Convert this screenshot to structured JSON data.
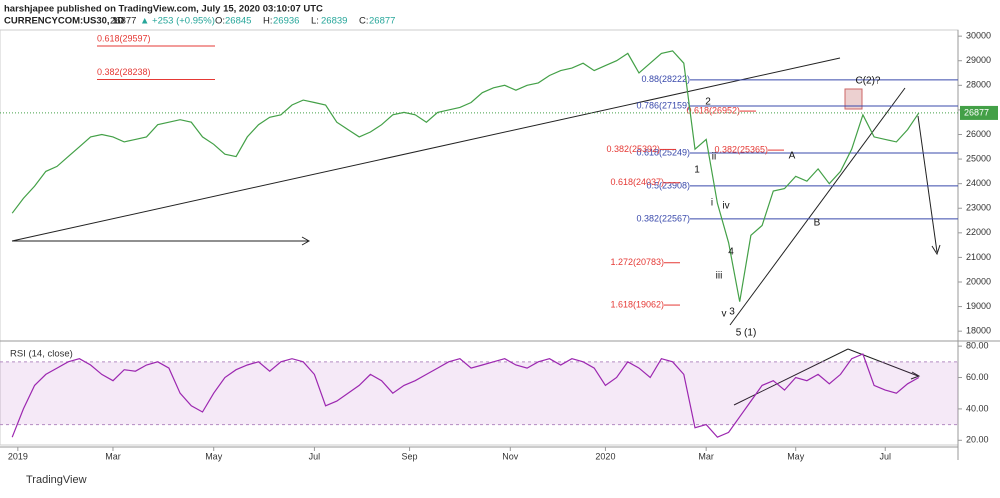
{
  "chart_data": {
    "type": "line",
    "title": "harshjapee published on TradingView.com, July 15, 2020 03:10:07 UTC",
    "symbol": "CURRENCYCOM:US30, 1D",
    "last": 26877,
    "change": "▲ +253 (+0.95%)",
    "ohlc": [
      {
        "label": "O:",
        "value": 26845
      },
      {
        "label": "H:",
        "value": 26936
      },
      {
        "label": "L:",
        "value": 26839
      },
      {
        "label": "C:",
        "value": 26877
      }
    ],
    "series": [
      {
        "name": "CURRENCYCOM:US30",
        "color": "#43a047",
        "values": [
          22800,
          23400,
          23900,
          24500,
          24700,
          25100,
          25500,
          25900,
          26000,
          25900,
          25700,
          25800,
          25900,
          26400,
          26500,
          26600,
          26500,
          25900,
          25600,
          25200,
          25100,
          25900,
          26400,
          26700,
          26800,
          27200,
          27400,
          27300,
          27200,
          26500,
          26200,
          25900,
          26100,
          26400,
          26800,
          26900,
          26800,
          26500,
          26900,
          27000,
          27100,
          27300,
          27700,
          27900,
          28000,
          27800,
          28000,
          28100,
          28400,
          28600,
          28700,
          28900,
          28600,
          28800,
          29000,
          29300,
          28500,
          28900,
          29300,
          29400,
          28900,
          25400,
          25800,
          23200,
          21600,
          19200,
          21900,
          22300,
          23700,
          23800,
          24300,
          24100,
          24600,
          24000,
          24500,
          25400,
          26800,
          25900,
          25800,
          25700,
          26200,
          26877
        ]
      },
      {
        "name": "RSI (14, close)",
        "color": "#9c27b0",
        "axis": "y2",
        "values": [
          22,
          40,
          55,
          62,
          66,
          70,
          72,
          68,
          62,
          58,
          65,
          64,
          68,
          70,
          66,
          50,
          42,
          38,
          50,
          60,
          65,
          68,
          70,
          64,
          70,
          72,
          70,
          62,
          42,
          45,
          50,
          55,
          62,
          58,
          50,
          55,
          58,
          62,
          66,
          70,
          72,
          66,
          68,
          70,
          72,
          68,
          66,
          70,
          72,
          68,
          72,
          70,
          66,
          55,
          60,
          70,
          66,
          60,
          72,
          70,
          62,
          28,
          30,
          22,
          25,
          35,
          45,
          55,
          58,
          52,
          60,
          58,
          62,
          56,
          62,
          72,
          75,
          55,
          52,
          50,
          56,
          60
        ]
      }
    ],
    "xlim": [
      -0.2,
      84.5
    ],
    "xticks": [
      {
        "value": 0.5,
        "label": "2019"
      },
      {
        "value": 9,
        "label": "Mar"
      },
      {
        "value": 18,
        "label": "May"
      },
      {
        "value": 27,
        "label": "Jul"
      },
      {
        "value": 35.5,
        "label": "Sep"
      },
      {
        "value": 44.5,
        "label": "Nov"
      },
      {
        "value": 53,
        "label": "2020"
      },
      {
        "value": 62,
        "label": "Mar"
      },
      {
        "value": 70,
        "label": "May"
      },
      {
        "value": 78,
        "label": "Jul"
      }
    ],
    "ylim": [
      17600,
      30250
    ],
    "yticks": [
      18000,
      19000,
      20000,
      21000,
      22000,
      23000,
      24000,
      25000,
      26000,
      27000,
      28000,
      29000,
      30000
    ],
    "y2lim": [
      17,
      82
    ],
    "y2ticks": [
      {
        "value": 20,
        "label": "20.00"
      },
      {
        "value": 40,
        "label": "40.00"
      },
      {
        "value": 60,
        "label": "60.00"
      },
      {
        "value": 80,
        "label": "80.00"
      }
    ],
    "rsi_band": [
      30,
      70
    ],
    "fib_left": [
      {
        "label": "0.618(29597)",
        "value": 29597
      },
      {
        "label": "0.382(28238)",
        "value": 28238
      }
    ],
    "fib_red": [
      {
        "label": "0.618(26952)",
        "value": 26952
      },
      {
        "label": "0.382(25365)",
        "value": 25365
      },
      {
        "label": "0.382(25392)",
        "value": 25392
      },
      {
        "label": "0.618(24037)",
        "value": 24037
      },
      {
        "label": "1.272(20783)",
        "value": 20783
      },
      {
        "label": "1.618(19062)",
        "value": 19062
      }
    ],
    "fib_blue": [
      {
        "label": "0.88(28222)",
        "value": 28222
      },
      {
        "label": "0.786(27159)",
        "value": 27159
      },
      {
        "label": "0.618(25249)",
        "value": 25249
      },
      {
        "label": "0.5(23908)",
        "value": 23908
      },
      {
        "label": "0.382(22567)",
        "value": 22567
      }
    ],
    "wave_labels": [
      "1",
      "2",
      "i",
      "ii",
      "iii",
      "iv",
      "4",
      "v",
      "3",
      "5 (1)",
      "A",
      "B",
      "C(2)?"
    ],
    "brand": "TradingView"
  }
}
